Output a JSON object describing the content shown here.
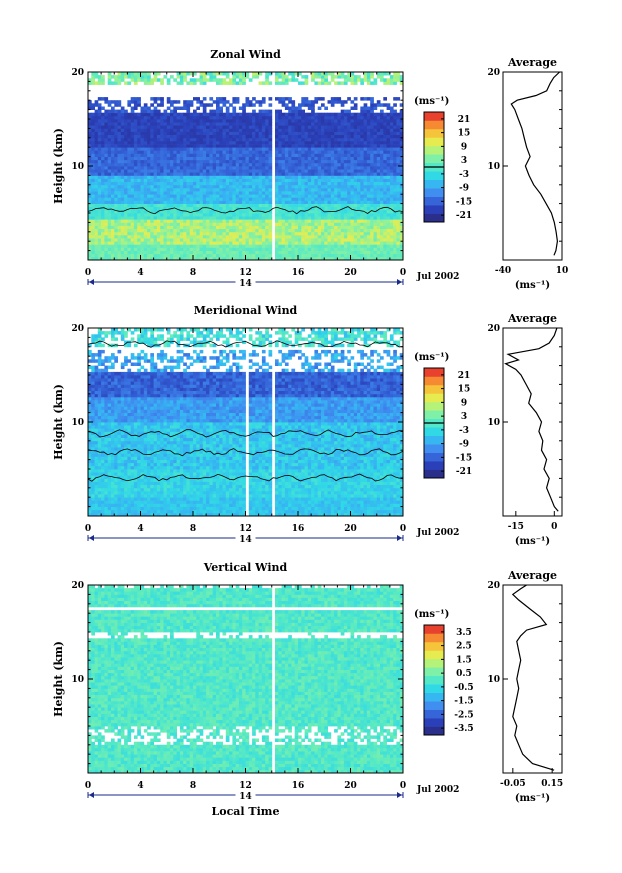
{
  "colors": {
    "colorbar_stops": [
      "#2a2f8c",
      "#2a3fb8",
      "#3565d9",
      "#3f8ef0",
      "#36b7f2",
      "#31d8e6",
      "#52e8c8",
      "#7ff0a8",
      "#b4f27a",
      "#e6ec4f",
      "#f5c43a",
      "#f58a33",
      "#e8412d"
    ]
  },
  "chart_data": [
    {
      "type": "heatmap",
      "title": "Zonal Wind",
      "ylabel": "Height (km)",
      "xlabel": "",
      "x_range": [
        0,
        24
      ],
      "y_range": [
        0,
        20
      ],
      "x_ticks": [
        "0",
        "4",
        "8",
        "12",
        "16",
        "20",
        "0"
      ],
      "y_ticks": [
        "20",
        "10"
      ],
      "date_marker": "14",
      "date_label": "Jul 2002",
      "colorbar": {
        "unit_label": "(ms⁻¹)",
        "ticks": [
          "21",
          "15",
          "9",
          "3",
          "-3",
          "-9",
          "-15",
          "-21"
        ],
        "zero_line_value": 0
      },
      "profile": {
        "title": "Average",
        "x_ticks": [
          "-40",
          "10"
        ],
        "xlim": [
          -40,
          10
        ],
        "y_ticks": [
          "20",
          "10"
        ],
        "xlabel": "(ms⁻¹)",
        "points": [
          [
            3.2,
            0.5
          ],
          [
            4.8,
            1
          ],
          [
            6.1,
            2
          ],
          [
            5.0,
            3
          ],
          [
            3.5,
            4
          ],
          [
            1.0,
            5
          ],
          [
            -3.5,
            6
          ],
          [
            -8.0,
            7
          ],
          [
            -14,
            8
          ],
          [
            -18,
            9
          ],
          [
            -21,
            10
          ],
          [
            -17,
            11
          ],
          [
            -20,
            12
          ],
          [
            -22,
            13
          ],
          [
            -24,
            14
          ],
          [
            -27,
            15
          ],
          [
            -30,
            16
          ],
          [
            -33,
            16.6
          ],
          [
            -28,
            17.0
          ],
          [
            -12,
            17.5
          ],
          [
            -3,
            18
          ],
          [
            0,
            18.8
          ],
          [
            3,
            19.4
          ],
          [
            8,
            20
          ]
        ]
      }
    },
    {
      "type": "heatmap",
      "title": "Meridional Wind",
      "ylabel": "Height (km)",
      "xlabel": "",
      "x_range": [
        0,
        24
      ],
      "y_range": [
        0,
        20
      ],
      "x_ticks": [
        "0",
        "4",
        "8",
        "12",
        "16",
        "20",
        "0"
      ],
      "y_ticks": [
        "20",
        "10"
      ],
      "date_marker": "14",
      "date_label": "Jul 2002",
      "colorbar": {
        "unit_label": "(ms⁻¹)",
        "ticks": [
          "21",
          "15",
          "9",
          "3",
          "-3",
          "-9",
          "-15",
          "-21"
        ],
        "zero_line_value": 0
      },
      "profile": {
        "title": "Average",
        "x_ticks": [
          "-15",
          "0"
        ],
        "xlim": [
          -20,
          3
        ],
        "y_ticks": [
          "20",
          "10"
        ],
        "xlabel": "(ms⁻¹)",
        "points": [
          [
            1.5,
            0.5
          ],
          [
            0,
            1
          ],
          [
            -1.5,
            2
          ],
          [
            -3,
            3
          ],
          [
            -2,
            4
          ],
          [
            -4,
            5
          ],
          [
            -3,
            6
          ],
          [
            -5,
            7
          ],
          [
            -4.5,
            8
          ],
          [
            -6,
            9
          ],
          [
            -5,
            10
          ],
          [
            -7,
            11
          ],
          [
            -10,
            12
          ],
          [
            -9,
            13
          ],
          [
            -11,
            14
          ],
          [
            -13,
            15
          ],
          [
            -15,
            15.6
          ],
          [
            -19,
            16.2
          ],
          [
            -14,
            16.6
          ],
          [
            -18,
            17.2
          ],
          [
            -6,
            17.8
          ],
          [
            -2,
            18.4
          ],
          [
            0,
            19.2
          ],
          [
            1,
            20
          ]
        ]
      }
    },
    {
      "type": "heatmap",
      "title": "Vertical Wind",
      "ylabel": "Height (km)",
      "xlabel": "Local Time",
      "x_range": [
        0,
        24
      ],
      "y_range": [
        0,
        20
      ],
      "x_ticks": [
        "0",
        "4",
        "8",
        "12",
        "16",
        "20",
        "0"
      ],
      "y_ticks": [
        "20",
        "10"
      ],
      "date_marker": "14",
      "date_label": "Jul 2002",
      "colorbar": {
        "unit_label": "(ms⁻¹)",
        "ticks": [
          "3.5",
          "2.5",
          "1.5",
          "0.5",
          "-0.5",
          "-1.5",
          "-2.5",
          "-3.5"
        ],
        "zero_line_value": null
      },
      "profile": {
        "title": "Average",
        "x_ticks": [
          "-0.05",
          "0.15"
        ],
        "xlim": [
          -0.1,
          0.2
        ],
        "y_ticks": [
          "20",
          "10"
        ],
        "xlabel": "(ms⁻¹)",
        "points": [
          [
            0.16,
            0.3
          ],
          [
            0.05,
            1
          ],
          [
            0.0,
            2
          ],
          [
            -0.02,
            3
          ],
          [
            -0.04,
            4
          ],
          [
            -0.03,
            5
          ],
          [
            -0.05,
            6
          ],
          [
            -0.04,
            7
          ],
          [
            -0.03,
            8
          ],
          [
            -0.02,
            9
          ],
          [
            -0.03,
            10
          ],
          [
            -0.02,
            11
          ],
          [
            -0.01,
            12
          ],
          [
            -0.02,
            13
          ],
          [
            -0.03,
            14
          ],
          [
            -0.01,
            14.6
          ],
          [
            0.02,
            15.2
          ],
          [
            0.12,
            15.8
          ],
          [
            0.09,
            16.6
          ],
          [
            0.04,
            17.4
          ],
          [
            -0.02,
            18.4
          ],
          [
            -0.05,
            19.0
          ],
          [
            -0.01,
            19.6
          ],
          [
            0.02,
            20
          ]
        ]
      }
    }
  ]
}
